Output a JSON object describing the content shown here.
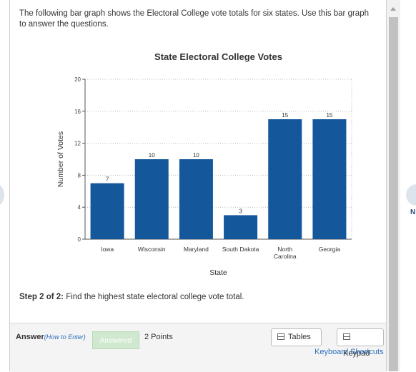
{
  "question": {
    "text": "The following bar graph shows the Electoral College vote totals for six states. Use this bar graph to answer the questions."
  },
  "step": {
    "label": "Step 2 of 2:",
    "text": "Find the highest state electoral college vote total."
  },
  "answer": {
    "label": "Answer",
    "how_to": "(How to Enter)",
    "answered_label": "Answered",
    "points": "2 Points",
    "tables_label": "Tables",
    "keypad_label": "Keypad",
    "keyboard_shortcuts": "Keyboard Shortcuts"
  },
  "nav": {
    "next_label": "N"
  },
  "colors": {
    "bar": "#14579a",
    "accent_link": "#2a6ebb"
  },
  "chart_data": {
    "type": "bar",
    "title": "State Electoral College Votes",
    "xlabel": "State",
    "ylabel": "Number of Votes",
    "categories": [
      "Iowa",
      "Wisconsin",
      "Maryland",
      "South Dakota",
      "North\nCarolina",
      "Georgia"
    ],
    "values": [
      7,
      10,
      10,
      3,
      15,
      15
    ],
    "ylim": [
      0,
      20
    ],
    "yticks": [
      0,
      4,
      8,
      12,
      16,
      20
    ],
    "grid": true,
    "data_labels": true
  }
}
